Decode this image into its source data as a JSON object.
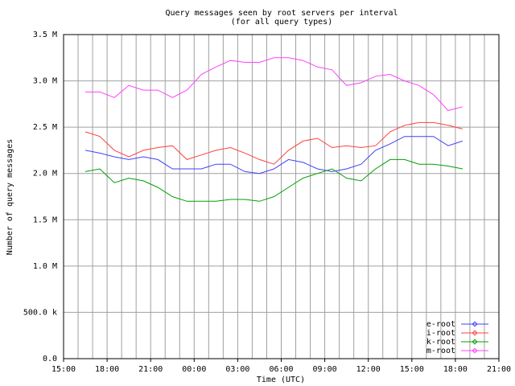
{
  "chart_data": {
    "type": "line",
    "title": "Query messages seen by root servers per interval",
    "subtitle": "(for all query types)",
    "x_label": "Time (UTC)",
    "y_label": "Number of query messages",
    "xlim": [
      15,
      45
    ],
    "xticks": [
      {
        "value": 15,
        "label": "15:00"
      },
      {
        "value": 18,
        "label": "18:00"
      },
      {
        "value": 21,
        "label": "21:00"
      },
      {
        "value": 24,
        "label": "00:00"
      },
      {
        "value": 27,
        "label": "03:00"
      },
      {
        "value": 30,
        "label": "06:00"
      },
      {
        "value": 33,
        "label": "09:00"
      },
      {
        "value": 36,
        "label": "12:00"
      },
      {
        "value": 39,
        "label": "15:00"
      },
      {
        "value": 42,
        "label": "18:00"
      },
      {
        "value": 45,
        "label": "21:00"
      }
    ],
    "x_gridlines": [
      15,
      16,
      17,
      18,
      19,
      20,
      21,
      22,
      23,
      24,
      25,
      26,
      27,
      28,
      29,
      30,
      31,
      32,
      33,
      34,
      35,
      36,
      37,
      38,
      39,
      40,
      41,
      42,
      43,
      44,
      45
    ],
    "ylim": [
      0,
      3500000
    ],
    "yticks": [
      {
        "value": 0,
        "label": "0.0"
      },
      {
        "value": 500000,
        "label": "500.0 k"
      },
      {
        "value": 1000000,
        "label": "1.0 M"
      },
      {
        "value": 1500000,
        "label": "1.5 M"
      },
      {
        "value": 2000000,
        "label": "2.0 M"
      },
      {
        "value": 2500000,
        "label": "2.5 M"
      },
      {
        "value": 3000000,
        "label": "3.0 M"
      },
      {
        "value": 3500000,
        "label": "3.5 M"
      }
    ],
    "grid": true,
    "legend": "lower-right",
    "x": [
      16.5,
      17.5,
      18.5,
      19.5,
      20.5,
      21.5,
      22.5,
      23.5,
      24.5,
      25.5,
      26.5,
      27.5,
      28.5,
      29.5,
      30.5,
      31.5,
      32.5,
      33.5,
      34.5,
      35.5,
      36.5,
      37.5,
      38.5,
      39.5,
      40.5,
      41.5,
      42.5
    ],
    "series": [
      {
        "name": "e-root",
        "color": "#4040ff",
        "values": [
          2250000,
          2220000,
          2180000,
          2150000,
          2180000,
          2150000,
          2050000,
          2050000,
          2050000,
          2100000,
          2100000,
          2020000,
          2000000,
          2050000,
          2150000,
          2120000,
          2050000,
          2020000,
          2050000,
          2100000,
          2250000,
          2320000,
          2400000,
          2400000,
          2400000,
          2300000,
          2350000
        ]
      },
      {
        "name": "i-root",
        "color": "#ff4040",
        "values": [
          2450000,
          2400000,
          2250000,
          2180000,
          2250000,
          2280000,
          2300000,
          2150000,
          2200000,
          2250000,
          2280000,
          2220000,
          2150000,
          2100000,
          2250000,
          2350000,
          2380000,
          2280000,
          2300000,
          2280000,
          2300000,
          2450000,
          2520000,
          2550000,
          2550000,
          2520000,
          2480000
        ]
      },
      {
        "name": "k-root",
        "color": "#00a000",
        "values": [
          2020000,
          2050000,
          1900000,
          1950000,
          1920000,
          1850000,
          1750000,
          1700000,
          1700000,
          1700000,
          1720000,
          1720000,
          1700000,
          1750000,
          1850000,
          1950000,
          2000000,
          2050000,
          1950000,
          1920000,
          2050000,
          2150000,
          2150000,
          2100000,
          2100000,
          2080000,
          2050000
        ]
      },
      {
        "name": "m-root",
        "color": "#ff40ff",
        "values": [
          2880000,
          2880000,
          2820000,
          2950000,
          2900000,
          2900000,
          2820000,
          2900000,
          3070000,
          3150000,
          3220000,
          3200000,
          3200000,
          3250000,
          3250000,
          3220000,
          3150000,
          3120000,
          2950000,
          2980000,
          3050000,
          3070000,
          3000000,
          2950000,
          2850000,
          2680000,
          2720000
        ]
      }
    ]
  }
}
